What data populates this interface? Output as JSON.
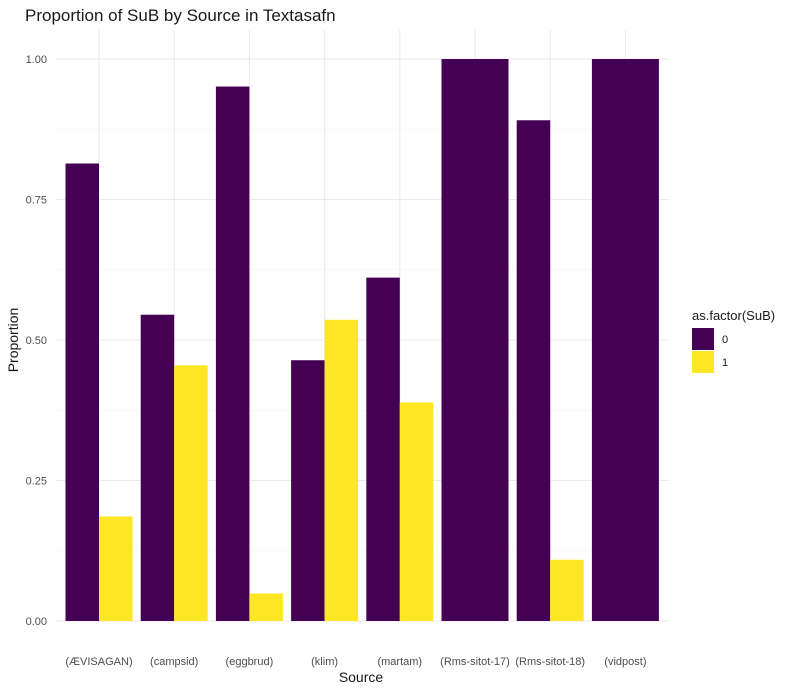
{
  "chart_data": {
    "type": "bar",
    "title": "Proportion of SuB by Source in Textasafn",
    "xlabel": "Source",
    "ylabel": "Proportion",
    "categories": [
      "(ÆVISAGAN)",
      "(campsid)",
      "(eggbrud)",
      "(klim)",
      "(martam)",
      "(Rms-sitot-17)",
      "(Rms-sitot-18)",
      "(vidpost)"
    ],
    "series": [
      {
        "name": "0",
        "color": "#440154",
        "values": [
          0.814,
          0.545,
          0.951,
          0.464,
          0.611,
          1.0,
          0.891,
          1.0
        ]
      },
      {
        "name": "1",
        "color": "#FDE725",
        "values": [
          0.186,
          0.455,
          0.049,
          0.536,
          0.389,
          null,
          0.109,
          null
        ]
      }
    ],
    "ylim": [
      0,
      1
    ],
    "yticks": [
      0,
      0.25,
      0.5,
      0.75,
      1.0
    ],
    "ytick_labels": [
      "0.00",
      "0.25",
      "0.50",
      "0.75",
      "1.00"
    ],
    "legend": {
      "title": "as.factor(SuB)",
      "position": "right"
    },
    "grid": true,
    "bar_mode": "dodge"
  }
}
